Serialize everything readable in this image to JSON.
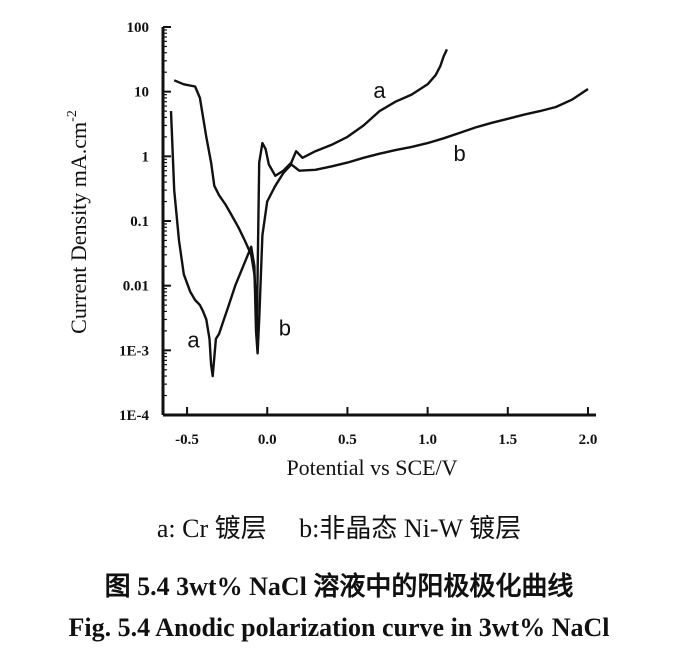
{
  "chart_data": {
    "type": "line",
    "xlabel": "Potential vs SCE/V",
    "ylabel": "Current Density  mA.cm",
    "ylabel_superscript": "-2",
    "y_scale": "log",
    "xlim": [
      -0.65,
      2.05
    ],
    "ylim": [
      0.0001,
      100
    ],
    "x_ticks": [
      -0.5,
      0.0,
      0.5,
      1.0,
      1.5,
      2.0
    ],
    "x_tick_labels": [
      "-0.5",
      "0.0",
      "0.5",
      "1.0",
      "1.5",
      "2.0"
    ],
    "y_ticks": [
      100,
      10,
      1,
      0.1,
      0.01,
      0.001,
      0.0001
    ],
    "y_tick_labels": [
      "100",
      "10",
      "1",
      "0.1",
      "0.01",
      "1E-3",
      "1E-4"
    ],
    "series": [
      {
        "name": "a",
        "x": [
          -0.58,
          -0.52,
          -0.45,
          -0.42,
          -0.38,
          -0.35,
          -0.33,
          -0.3,
          -0.26,
          -0.22,
          -0.18,
          -0.14,
          -0.1,
          -0.08,
          -0.07,
          -0.065,
          -0.05,
          -0.03,
          -0.01,
          0.01,
          0.05,
          0.1,
          0.15,
          0.18,
          0.22,
          0.3,
          0.4,
          0.5,
          0.6,
          0.7,
          0.8,
          0.9,
          1.0,
          1.05,
          1.08,
          1.1,
          1.12
        ],
        "y": [
          15,
          13,
          12,
          8,
          2,
          0.8,
          0.35,
          0.25,
          0.18,
          0.12,
          0.08,
          0.05,
          0.03,
          0.015,
          0.005,
          0.002,
          0.8,
          1.6,
          1.3,
          0.75,
          0.5,
          0.6,
          0.8,
          1.2,
          0.95,
          1.2,
          1.5,
          2.0,
          3.0,
          5.0,
          7.0,
          9.0,
          13.0,
          18.0,
          25.0,
          35.0,
          45.0
        ]
      },
      {
        "name": "b",
        "x": [
          -0.6,
          -0.58,
          -0.55,
          -0.52,
          -0.48,
          -0.45,
          -0.42,
          -0.4,
          -0.38,
          -0.36,
          -0.35,
          -0.34,
          -0.32,
          -0.3,
          -0.27,
          -0.24,
          -0.2,
          -0.15,
          -0.1,
          -0.08,
          -0.07,
          -0.06,
          -0.05,
          -0.03,
          0.0,
          0.05,
          0.1,
          0.15,
          0.2,
          0.3,
          0.4,
          0.5,
          0.6,
          0.7,
          0.8,
          0.9,
          1.0,
          1.1,
          1.2,
          1.3,
          1.4,
          1.5,
          1.6,
          1.7,
          1.8,
          1.9,
          2.0
        ],
        "y": [
          5,
          0.3,
          0.05,
          0.015,
          0.008,
          0.006,
          0.005,
          0.004,
          0.003,
          0.0015,
          0.0006,
          0.0004,
          0.0015,
          0.0018,
          0.003,
          0.005,
          0.01,
          0.02,
          0.04,
          0.02,
          0.002,
          0.0009,
          0.003,
          0.06,
          0.2,
          0.35,
          0.55,
          0.75,
          0.6,
          0.62,
          0.7,
          0.8,
          0.95,
          1.1,
          1.25,
          1.4,
          1.6,
          1.9,
          2.3,
          2.8,
          3.3,
          3.8,
          4.4,
          5.0,
          5.8,
          7.5,
          11.0
        ]
      }
    ],
    "annotations": [
      {
        "text": "a",
        "x": 0.7,
        "y": 8.0
      },
      {
        "text": "b",
        "x": 1.2,
        "y": 0.85
      },
      {
        "text": "a",
        "x": -0.46,
        "y": 0.0011
      },
      {
        "text": "b",
        "x": 0.11,
        "y": 0.0017
      }
    ],
    "grid": false,
    "legend": "none"
  },
  "captions": {
    "legend_line": "a: Cr 镀层     b:非晶态 Ni-W 镀层",
    "figure_cn": "图 5.4 3wt% NaCl 溶液中的阳极极化曲线",
    "figure_en": "Fig. 5.4 Anodic polarization curve in 3wt% NaCl"
  },
  "colors": {
    "ink": "#111111",
    "background": "#ffffff"
  }
}
